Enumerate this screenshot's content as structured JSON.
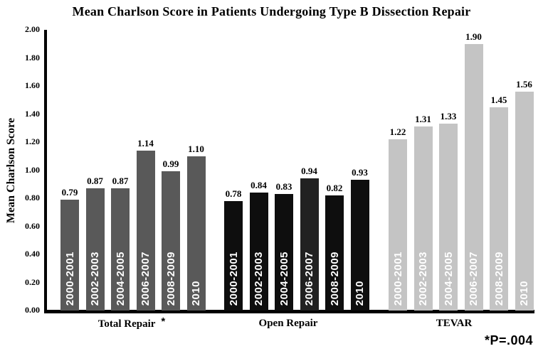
{
  "title": "Mean Charlson Score in Patients Undergoing Type B Dissection Repair",
  "footnote": "*P=.004",
  "chart_data": {
    "type": "bar",
    "title": "Mean Charlson Score in Patients Undergoing Type B Dissection Repair",
    "xlabel": "",
    "ylabel": "Mean Charlson Score",
    "ylim": [
      0.0,
      2.0
    ],
    "ytick_step": 0.2,
    "ytick_labels": [
      "2.00",
      "1.80",
      "1.60",
      "1.40",
      "1.20",
      "1.00",
      "0.80",
      "0.60",
      "0.40",
      "0.20",
      "0.00"
    ],
    "grid": false,
    "legend_position": "none",
    "categories": [
      "2000-2001",
      "2002-2003",
      "2004-2005",
      "2006-2007",
      "2008-2009",
      "2010"
    ],
    "series": [
      {
        "name": "Total Repair",
        "label_suffix": "*",
        "color": "#595959",
        "values": [
          0.79,
          0.87,
          0.87,
          1.14,
          0.99,
          1.1
        ],
        "value_labels": [
          "0.79",
          "0.87",
          "0.87",
          "1.14",
          "0.99",
          "1.10"
        ]
      },
      {
        "name": "Open Repair",
        "label_suffix": "",
        "color": "#0e0e0e",
        "bar_colors": [
          "#0e0e0e",
          "#0e0e0e",
          "#0e0e0e",
          "#212121",
          "#0e0e0e",
          "#0e0e0e"
        ],
        "values": [
          0.78,
          0.84,
          0.83,
          0.94,
          0.82,
          0.93
        ],
        "value_labels": [
          "0.78",
          "0.84",
          "0.83",
          "0.94",
          "0.82",
          "0.93"
        ]
      },
      {
        "name": "TEVAR",
        "label_suffix": "",
        "color": "#c4c4c4",
        "values": [
          1.22,
          1.31,
          1.33,
          1.9,
          1.45,
          1.56
        ],
        "value_labels": [
          "1.22",
          "1.31",
          "1.33",
          "1.90",
          "1.45",
          "1.56"
        ]
      }
    ],
    "bar_label_color_inside": "#ffffff",
    "annotation": "*P=.004"
  }
}
